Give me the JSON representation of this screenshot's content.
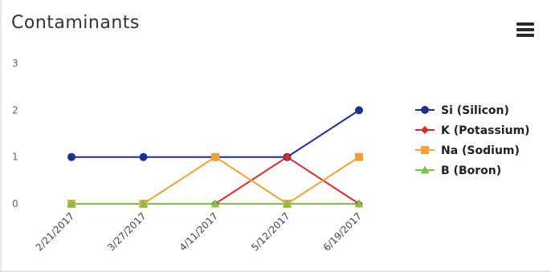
{
  "header": {
    "title": "Contaminants",
    "menu_icon": "hamburger-menu-icon"
  },
  "chart_data": {
    "type": "line",
    "title": "Contaminants",
    "xlabel": "",
    "ylabel": "",
    "categories": [
      "2/21/2017",
      "3/27/2017",
      "4/11/2017",
      "5/12/2017",
      "6/19/2017"
    ],
    "yticks": [
      "0",
      "1",
      "2",
      "3"
    ],
    "ylim": [
      0,
      3
    ],
    "grid": false,
    "legend_position": "right",
    "series": [
      {
        "name": "Si (Silicon)",
        "color": "#1f2f8f",
        "marker": "circle",
        "values": [
          1,
          1,
          1,
          1,
          2
        ]
      },
      {
        "name": "K (Potassium)",
        "color": "#d62d2d",
        "marker": "diamond",
        "values": [
          0,
          0,
          0,
          1,
          0
        ]
      },
      {
        "name": "Na (Sodium)",
        "color": "#f0a23a",
        "marker": "square",
        "values": [
          0,
          0,
          1,
          0,
          1
        ]
      },
      {
        "name": "B (Boron)",
        "color": "#7ec24d",
        "marker": "triangle",
        "values": [
          0,
          0,
          0,
          0,
          0
        ]
      }
    ]
  }
}
